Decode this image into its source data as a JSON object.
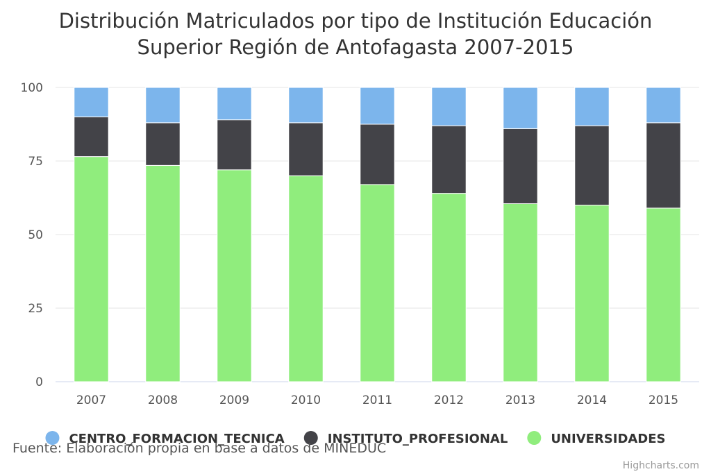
{
  "chart_data": {
    "type": "bar",
    "stacking": "percent",
    "title": [
      "Distribución Matriculados por tipo de Institución Educación",
      "Superior Región de Antofagasta 2007-2015"
    ],
    "categories": [
      "2007",
      "2008",
      "2009",
      "2010",
      "2011",
      "2012",
      "2013",
      "2014",
      "2015"
    ],
    "ylim": [
      0,
      100
    ],
    "yticks": [
      "0",
      "25",
      "50",
      "75",
      "100"
    ],
    "grid": true,
    "legend_placement": "bottom",
    "series": [
      {
        "name": "CENTRO_FORMACION_TECNICA",
        "color": "#7cb5ec",
        "values": [
          10,
          12,
          11,
          12,
          12.5,
          13,
          14,
          13,
          12
        ]
      },
      {
        "name": "INSTITUTO_PROFESIONAL",
        "color": "#434348",
        "values": [
          13.5,
          14.5,
          17,
          18,
          20.5,
          23,
          25.5,
          27,
          29
        ]
      },
      {
        "name": "UNIVERSIDADES",
        "color": "#90ed7d",
        "values": [
          76.5,
          73.5,
          72,
          70,
          67,
          64,
          60.5,
          60,
          59
        ]
      }
    ]
  },
  "footer": {
    "source": "Fuente: Elaboración propia en base a datos de MINEDUC"
  },
  "credits": "Highcharts.com"
}
